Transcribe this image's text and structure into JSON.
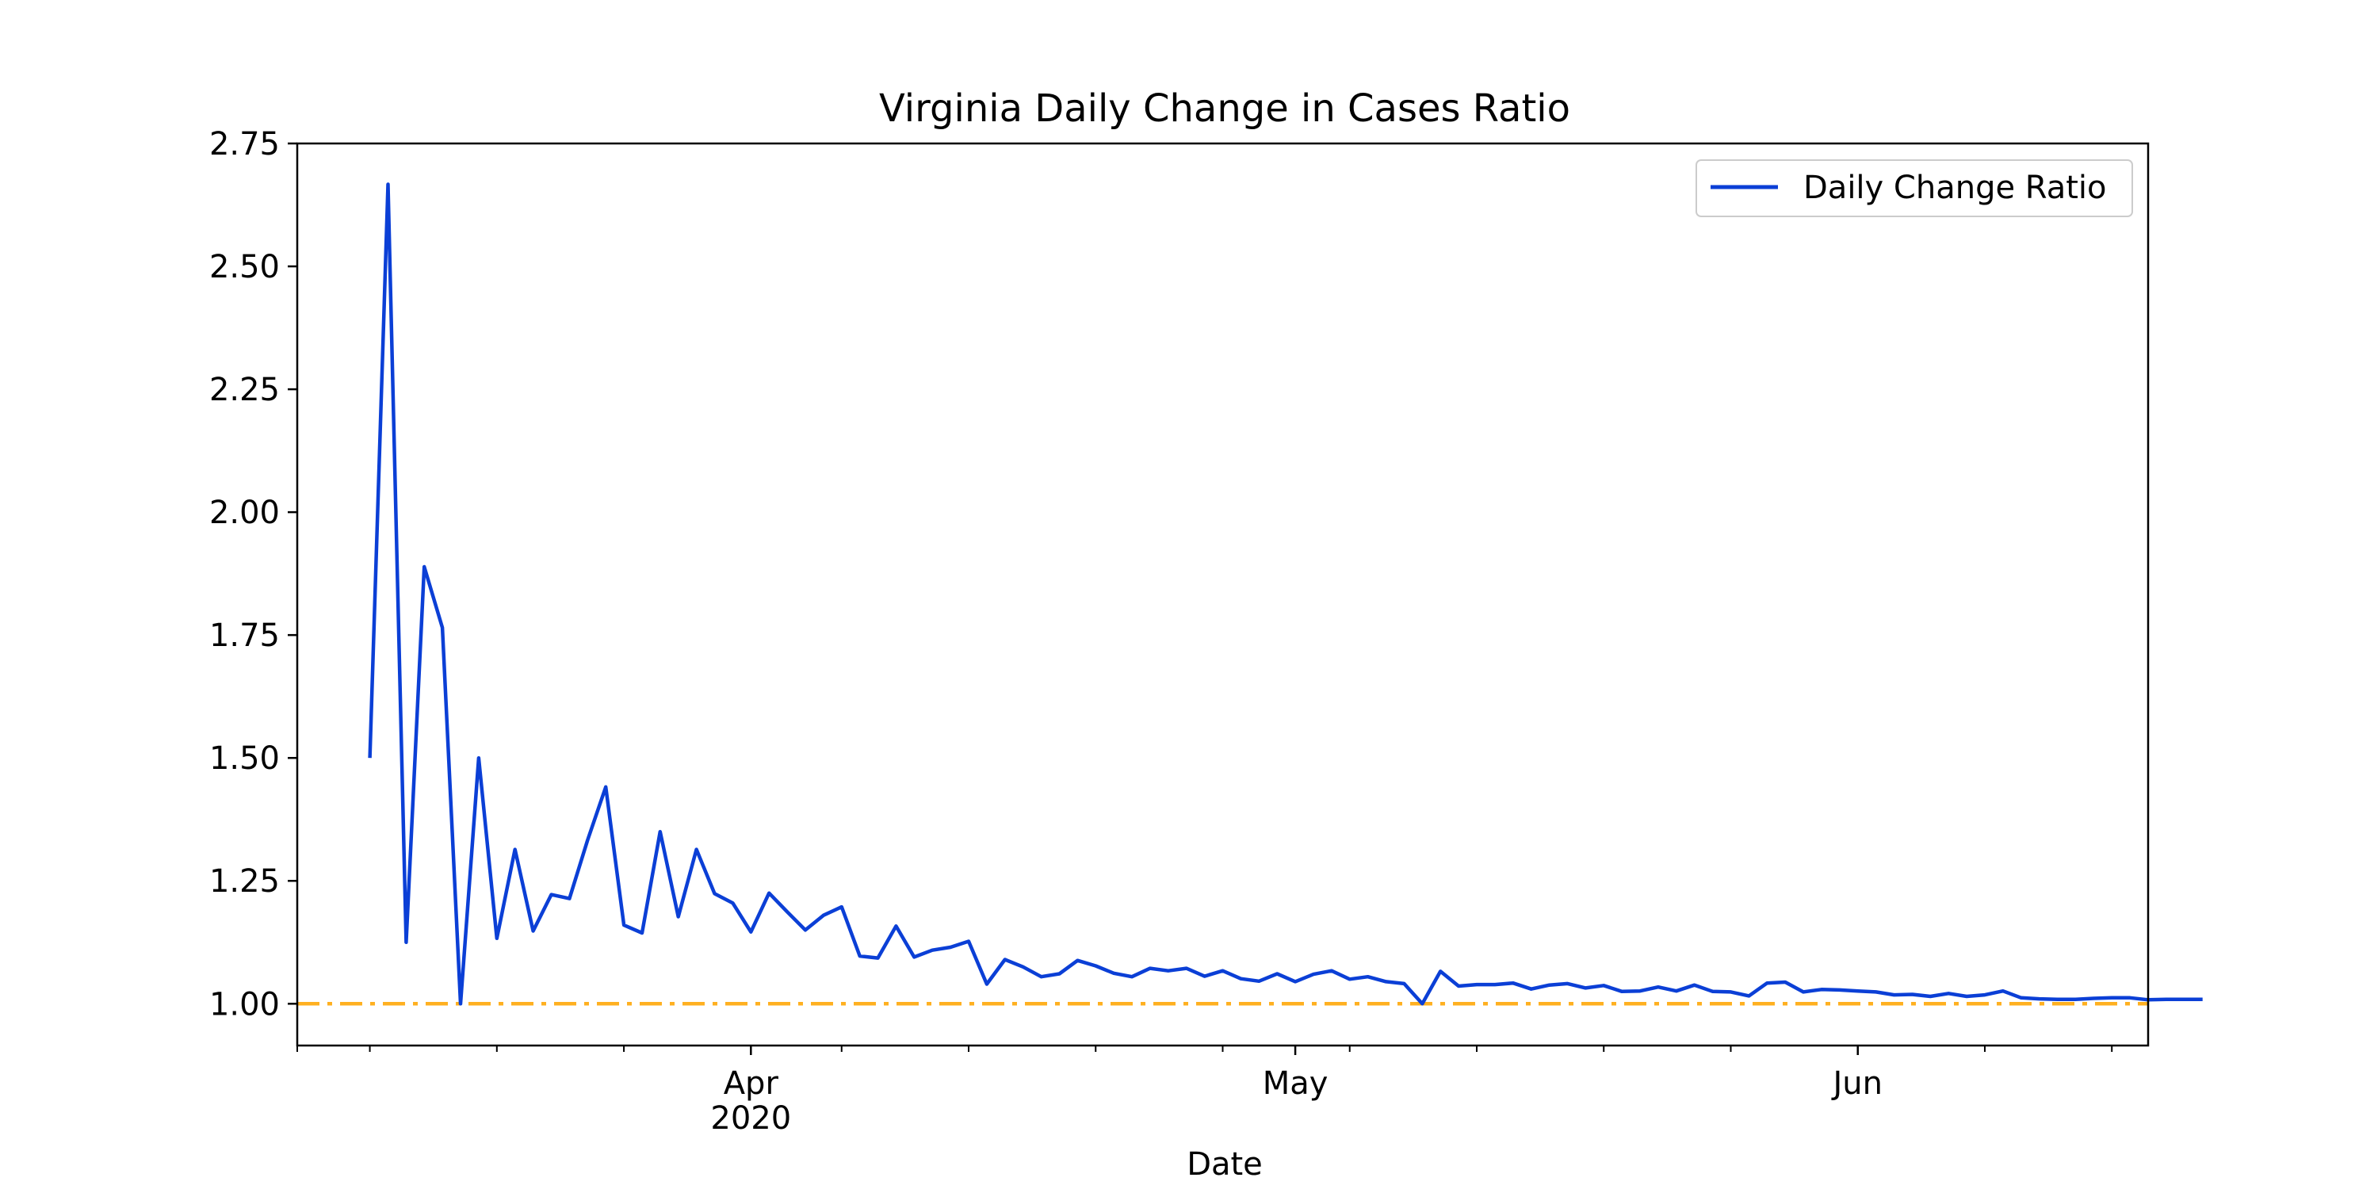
{
  "chart_data": {
    "type": "line",
    "title": "Virginia Daily Change in Cases Ratio",
    "xlabel": "Date",
    "ylabel": "",
    "xlim": [
      "2020-03-07",
      "2020-06-17"
    ],
    "ylim": [
      0.915,
      2.75
    ],
    "yticks": [
      1.0,
      1.25,
      1.5,
      1.75,
      2.0,
      2.25,
      2.5,
      2.75
    ],
    "ytick_labels": [
      "1.00",
      "1.25",
      "1.50",
      "1.75",
      "2.00",
      "2.25",
      "2.50",
      "2.75"
    ],
    "xticks_major": [
      {
        "date": "2020-04-01",
        "label": "Apr",
        "sublabel": "2020"
      },
      {
        "date": "2020-05-01",
        "label": "May",
        "sublabel": ""
      },
      {
        "date": "2020-06-01",
        "label": "Jun",
        "sublabel": ""
      }
    ],
    "xticks_minor": [
      "2020-03-07",
      "2020-03-11",
      "2020-03-18",
      "2020-03-25",
      "2020-04-06",
      "2020-04-13",
      "2020-04-20",
      "2020-04-27",
      "2020-05-04",
      "2020-05-11",
      "2020-05-18",
      "2020-05-25",
      "2020-06-08",
      "2020-06-15"
    ],
    "legend": {
      "position": "top-right",
      "entries": [
        "Daily Change Ratio"
      ]
    },
    "grid": false,
    "x_start": "2020-03-11",
    "series": [
      {
        "name": "Daily Change Ratio",
        "color": "#0b3fd6",
        "values": [
          1.5,
          2.667,
          1.125,
          1.889,
          1.765,
          1.0,
          1.5,
          1.133,
          1.314,
          1.148,
          1.222,
          1.214,
          1.333,
          1.441,
          1.16,
          1.144,
          1.35,
          1.177,
          1.314,
          1.224,
          1.205,
          1.146,
          1.225,
          1.187,
          1.15,
          1.18,
          1.197,
          1.097,
          1.093,
          1.158,
          1.095,
          1.109,
          1.115,
          1.127,
          1.04,
          1.09,
          1.075,
          1.055,
          1.061,
          1.088,
          1.077,
          1.062,
          1.055,
          1.072,
          1.067,
          1.072,
          1.056,
          1.067,
          1.051,
          1.046,
          1.061,
          1.045,
          1.06,
          1.067,
          1.05,
          1.055,
          1.045,
          1.041,
          1.0,
          1.066,
          1.036,
          1.039,
          1.039,
          1.042,
          1.03,
          1.038,
          1.041,
          1.032,
          1.037,
          1.025,
          1.026,
          1.034,
          1.026,
          1.038,
          1.025,
          1.024,
          1.016,
          1.042,
          1.044,
          1.024,
          1.029,
          1.028,
          1.026,
          1.024,
          1.018,
          1.019,
          1.015,
          1.021,
          1.015,
          1.018,
          1.026,
          1.012,
          1.01,
          1.009,
          1.009,
          1.011,
          1.012,
          1.012,
          1.008,
          1.009,
          1.009,
          1.009
        ]
      },
      {
        "name": "",
        "color": "#ffb020",
        "style": "dashdot",
        "hline": 1.0
      }
    ]
  }
}
